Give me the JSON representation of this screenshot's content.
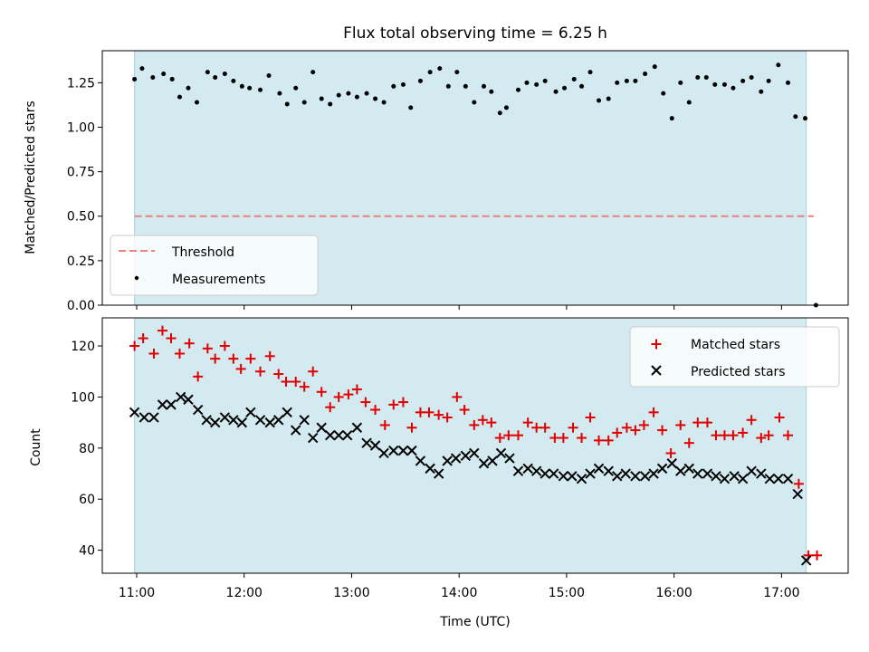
{
  "chart_data": [
    {
      "type": "scatter",
      "title": "Flux total observing time = 6.25 h",
      "ylabel": "Matched/Predicted stars",
      "xlabel": "",
      "xlim": [
        10.68,
        17.62
      ],
      "ylim": [
        0.0,
        1.43
      ],
      "grid": false,
      "legend_placement": "lower-left",
      "shaded_interval": {
        "start": 10.98,
        "end": 17.23,
        "color": "#d3eaf0"
      },
      "yticks": [
        0.0,
        0.25,
        0.5,
        0.75,
        1.0,
        1.25
      ],
      "ytick_labels": [
        "0.00",
        "0.25",
        "0.50",
        "0.75",
        "1.00",
        "1.25"
      ],
      "xticks": [
        11,
        12,
        13,
        14,
        15,
        16,
        17
      ],
      "series": [
        {
          "name": "Threshold",
          "kind": "dashed-line",
          "color": "#f08080",
          "x": [
            10.98,
            17.3
          ],
          "y": [
            0.5,
            0.5
          ]
        },
        {
          "name": "Measurements",
          "kind": "dots",
          "color": "#000000",
          "x": [
            10.98,
            11.05,
            11.15,
            11.25,
            11.33,
            11.4,
            11.48,
            11.56,
            11.66,
            11.73,
            11.82,
            11.9,
            11.98,
            12.05,
            12.15,
            12.23,
            12.33,
            12.4,
            12.48,
            12.56,
            12.64,
            12.72,
            12.8,
            12.88,
            12.97,
            13.05,
            13.14,
            13.22,
            13.3,
            13.39,
            13.48,
            13.55,
            13.64,
            13.73,
            13.82,
            13.9,
            13.98,
            14.06,
            14.14,
            14.23,
            14.3,
            14.38,
            14.44,
            14.55,
            14.63,
            14.72,
            14.8,
            14.9,
            14.98,
            15.07,
            15.14,
            15.22,
            15.3,
            15.39,
            15.47,
            15.56,
            15.64,
            15.73,
            15.82,
            15.9,
            15.98,
            16.06,
            16.14,
            16.22,
            16.3,
            16.38,
            16.47,
            16.55,
            16.64,
            16.72,
            16.81,
            16.88,
            16.97,
            17.06,
            17.13,
            17.22,
            17.32
          ],
          "y": [
            1.27,
            1.33,
            1.28,
            1.3,
            1.27,
            1.17,
            1.22,
            1.14,
            1.31,
            1.28,
            1.3,
            1.26,
            1.23,
            1.22,
            1.21,
            1.29,
            1.19,
            1.13,
            1.22,
            1.14,
            1.31,
            1.16,
            1.13,
            1.18,
            1.19,
            1.17,
            1.19,
            1.16,
            1.14,
            1.23,
            1.24,
            1.11,
            1.26,
            1.31,
            1.33,
            1.23,
            1.31,
            1.23,
            1.14,
            1.23,
            1.2,
            1.08,
            1.11,
            1.21,
            1.25,
            1.24,
            1.26,
            1.2,
            1.22,
            1.27,
            1.23,
            1.31,
            1.15,
            1.16,
            1.25,
            1.26,
            1.26,
            1.3,
            1.34,
            1.19,
            1.05,
            1.25,
            1.14,
            1.28,
            1.28,
            1.24,
            1.24,
            1.22,
            1.26,
            1.28,
            1.2,
            1.26,
            1.35,
            1.25,
            1.06,
            1.05,
            0.0
          ]
        }
      ]
    },
    {
      "type": "scatter",
      "title": "",
      "ylabel": "Count",
      "xlabel": "Time (UTC)",
      "xlim": [
        10.68,
        17.62
      ],
      "ylim": [
        31,
        131
      ],
      "grid": false,
      "legend_placement": "upper-right",
      "shaded_interval": {
        "start": 10.98,
        "end": 17.23,
        "color": "#d3eaf0"
      },
      "yticks": [
        40,
        60,
        80,
        100,
        120
      ],
      "ytick_labels": [
        "40",
        "60",
        "80",
        "100",
        "120"
      ],
      "xticks": [
        11,
        12,
        13,
        14,
        15,
        16,
        17
      ],
      "xtick_labels": [
        "11:00",
        "12:00",
        "13:00",
        "14:00",
        "15:00",
        "16:00",
        "17:00"
      ],
      "series": [
        {
          "name": "Matched stars",
          "marker": "+",
          "color": "#e00000",
          "x": [
            10.98,
            11.06,
            11.16,
            11.24,
            11.32,
            11.4,
            11.49,
            11.57,
            11.66,
            11.73,
            11.82,
            11.9,
            11.97,
            12.06,
            12.15,
            12.24,
            12.32,
            12.39,
            12.48,
            12.56,
            12.64,
            12.72,
            12.8,
            12.88,
            12.97,
            13.05,
            13.13,
            13.22,
            13.31,
            13.39,
            13.48,
            13.56,
            13.64,
            13.72,
            13.81,
            13.89,
            13.98,
            14.05,
            14.14,
            14.22,
            14.3,
            14.38,
            14.46,
            14.55,
            14.64,
            14.72,
            14.8,
            14.89,
            14.97,
            15.06,
            15.14,
            15.22,
            15.3,
            15.39,
            15.47,
            15.56,
            15.64,
            15.72,
            15.81,
            15.89,
            15.97,
            16.06,
            16.14,
            16.22,
            16.31,
            16.39,
            16.47,
            16.55,
            16.64,
            16.72,
            16.81,
            16.88,
            16.98,
            17.06,
            17.16,
            17.25,
            17.33
          ],
          "y": [
            120,
            123,
            117,
            126,
            123,
            117,
            121,
            108,
            119,
            115,
            120,
            115,
            111,
            115,
            110,
            116,
            109,
            106,
            106,
            104,
            110,
            102,
            96,
            100,
            101,
            103,
            98,
            95,
            89,
            97,
            98,
            88,
            94,
            94,
            93,
            92,
            100,
            95,
            89,
            91,
            90,
            84,
            85,
            85,
            90,
            88,
            88,
            84,
            84,
            88,
            84,
            92,
            83,
            83,
            86,
            88,
            87,
            89,
            94,
            87,
            78,
            89,
            82,
            90,
            90,
            85,
            85,
            85,
            86,
            91,
            84,
            85,
            92,
            85,
            66,
            38,
            38
          ]
        },
        {
          "name": "Predicted stars",
          "marker": "x",
          "color": "#000000",
          "x": [
            10.98,
            11.07,
            11.16,
            11.24,
            11.32,
            11.41,
            11.48,
            11.57,
            11.65,
            11.73,
            11.82,
            11.9,
            11.98,
            12.06,
            12.15,
            12.24,
            12.32,
            12.4,
            12.48,
            12.56,
            12.64,
            12.72,
            12.8,
            12.88,
            12.96,
            13.05,
            13.14,
            13.22,
            13.3,
            13.39,
            13.48,
            13.56,
            13.64,
            13.73,
            13.81,
            13.89,
            13.97,
            14.06,
            14.14,
            14.23,
            14.31,
            14.39,
            14.47,
            14.55,
            14.64,
            14.72,
            14.8,
            14.88,
            14.97,
            15.05,
            15.14,
            15.22,
            15.3,
            15.39,
            15.47,
            15.55,
            15.64,
            15.73,
            15.81,
            15.89,
            15.98,
            16.06,
            16.14,
            16.22,
            16.31,
            16.39,
            16.47,
            16.56,
            16.64,
            16.72,
            16.81,
            16.89,
            16.97,
            17.06,
            17.15,
            17.23
          ],
          "y": [
            94,
            92,
            92,
            97,
            97,
            100,
            99,
            95,
            91,
            90,
            92,
            91,
            90,
            94,
            91,
            90,
            91,
            94,
            87,
            91,
            84,
            88,
            85,
            85,
            85,
            88,
            82,
            81,
            78,
            79,
            79,
            79,
            75,
            72,
            70,
            75,
            76,
            77,
            78,
            74,
            75,
            78,
            76,
            71,
            72,
            71,
            70,
            70,
            69,
            69,
            68,
            70,
            72,
            71,
            69,
            70,
            69,
            69,
            70,
            72,
            74,
            71,
            72,
            70,
            70,
            69,
            68,
            69,
            68,
            71,
            70,
            68,
            68,
            68,
            62,
            36
          ]
        }
      ]
    }
  ]
}
